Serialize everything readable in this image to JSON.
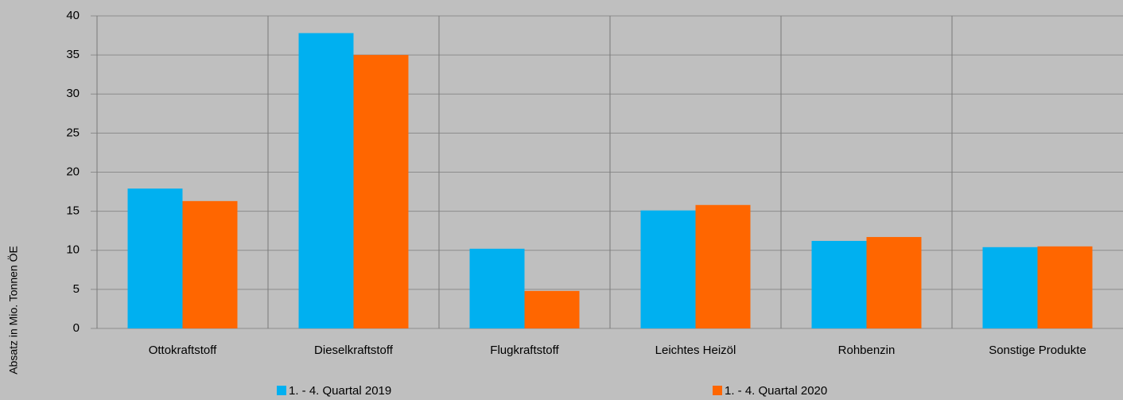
{
  "chart_data": {
    "type": "bar",
    "y_label": "Absatz in Mio. Tonnen ÖE",
    "categories": [
      "Ottokraftstoff",
      "Dieselkraftstoff",
      "Flugkraftstoff",
      "Leichtes Heizöl",
      "Rohbenzin",
      "Sonstige Produkte"
    ],
    "series": [
      {
        "name": "1. - 4. Quartal 2019",
        "color": "#00b0f0",
        "values": [
          17.9,
          37.8,
          10.2,
          15.1,
          11.2,
          10.4
        ]
      },
      {
        "name": "1. - 4. Quartal 2020",
        "color": "#ff6600",
        "values": [
          16.3,
          35.0,
          4.8,
          15.8,
          11.7,
          10.5
        ]
      }
    ],
    "ylim": [
      0,
      40
    ],
    "yticks": [
      0,
      5,
      10,
      15,
      20,
      25,
      30,
      35,
      40
    ],
    "grid": true,
    "legend": "bottom"
  }
}
